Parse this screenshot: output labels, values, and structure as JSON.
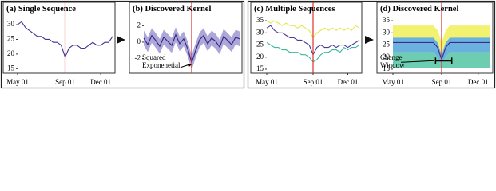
{
  "chart_data": [
    {
      "type": "line",
      "title": "(a) Single Sequence",
      "x": [
        0,
        1,
        2,
        3,
        4,
        5,
        6,
        7,
        8,
        9,
        10,
        11,
        12,
        13,
        14,
        15,
        16,
        17,
        18,
        19,
        20,
        21,
        22,
        23,
        24
      ],
      "xlim": [
        0,
        24
      ],
      "xticks": [
        {
          "value": 0,
          "label": "May 01"
        },
        {
          "value": 12,
          "label": "Sep 01"
        },
        {
          "value": 21,
          "label": "Dec 01"
        }
      ],
      "ylim": [
        14,
        33
      ],
      "yticks": [
        15,
        20,
        25,
        30
      ],
      "vline": 12,
      "series": [
        {
          "color": "#3d3590",
          "values": [
            30,
            31,
            29,
            28,
            27,
            26,
            26,
            25,
            25,
            24,
            24,
            23,
            19,
            22,
            23,
            23,
            22,
            22,
            23,
            24,
            23,
            23,
            24,
            24,
            26
          ]
        }
      ]
    },
    {
      "type": "line",
      "title": "(b) Discovered Kernel",
      "x": [
        0,
        1,
        2,
        3,
        4,
        5,
        6,
        7,
        8,
        9,
        10,
        11,
        12,
        13,
        14,
        15,
        16,
        17,
        18,
        19,
        20,
        21,
        22,
        23,
        24
      ],
      "xlim": [
        0,
        24
      ],
      "xticks": [],
      "ylim": [
        -3.6,
        3.2
      ],
      "yticks": [
        -2,
        0,
        2
      ],
      "vline": 12,
      "annotation": [
        "Squared",
        "Exponenetial"
      ],
      "bands": [
        {
          "color": "#8a80c8",
          "lower": [
            -0.4,
            -1.2,
            -0.1,
            -0.7,
            -1.4,
            -0.3,
            -0.8,
            -1.3,
            0,
            -1.1,
            -0.5,
            -1.7,
            -3.4,
            -1.9,
            -0.6,
            -0.1,
            -1.1,
            -0.4,
            -0.8,
            -1.5,
            -0.2,
            -0.7,
            -1.2,
            -0.3,
            -0.5
          ],
          "upper": [
            1.4,
            0.6,
            1.7,
            1.1,
            0.4,
            1.5,
            1.0,
            0.5,
            1.8,
            0.7,
            1.3,
            0.1,
            -1.6,
            -0.1,
            1.2,
            1.7,
            0.7,
            1.4,
            1.0,
            0.3,
            1.6,
            1.1,
            0.6,
            1.5,
            1.3
          ]
        }
      ],
      "series": [
        {
          "color": "#2e2680",
          "values": [
            0.5,
            -0.3,
            0.8,
            0.2,
            -0.5,
            0.6,
            0.1,
            -0.4,
            0.9,
            -0.2,
            0.4,
            -0.8,
            -2.5,
            -1.0,
            0.3,
            0.8,
            -0.2,
            0.5,
            0.1,
            -0.6,
            0.7,
            0.2,
            -0.3,
            0.6,
            0.4
          ]
        }
      ]
    },
    {
      "type": "line",
      "title": "(c) Multiple Sequences",
      "x": [
        0,
        1,
        2,
        3,
        4,
        5,
        6,
        7,
        8,
        9,
        10,
        11,
        12,
        13,
        14,
        15,
        16,
        17,
        18,
        19,
        20,
        21,
        22,
        23,
        24
      ],
      "xlim": [
        0,
        24
      ],
      "xticks": [
        {
          "value": 0,
          "label": "May 01"
        },
        {
          "value": 12,
          "label": "Sep 01"
        },
        {
          "value": 21,
          "label": "Dec 01"
        }
      ],
      "ylim": [
        14,
        37
      ],
      "yticks": [
        15,
        20,
        25,
        30,
        35
      ],
      "vline": 12,
      "series": [
        {
          "color": "#e6e64a",
          "values": [
            35,
            34,
            35,
            34,
            33,
            34,
            33,
            33,
            32,
            33,
            32,
            31,
            28,
            30,
            31,
            32,
            31,
            32,
            31,
            32,
            31,
            32,
            31,
            33,
            32
          ]
        },
        {
          "color": "#4a3a9a",
          "values": [
            32,
            33,
            31,
            30,
            30,
            29,
            28,
            28,
            27,
            27,
            26,
            25,
            21,
            24,
            25,
            24,
            24,
            25,
            24,
            25,
            25,
            24,
            25,
            26,
            27
          ]
        },
        {
          "color": "#3cb89a",
          "values": [
            26,
            25,
            24,
            24,
            23,
            23,
            22,
            22,
            22,
            21,
            21,
            20,
            18,
            19,
            21,
            22,
            22,
            23,
            23,
            22,
            24,
            23,
            24,
            24,
            25
          ]
        }
      ]
    },
    {
      "type": "line",
      "title": "(d) Discovered Kernel",
      "x": [
        0,
        1,
        2,
        3,
        4,
        5,
        6,
        7,
        8,
        9,
        10,
        11,
        12,
        13,
        14,
        15,
        16,
        17,
        18,
        19,
        20,
        21,
        22,
        23,
        24
      ],
      "xlim": [
        0,
        24
      ],
      "xticks": [
        {
          "value": 0,
          "label": "May 01"
        },
        {
          "value": 12,
          "label": "Sep 01"
        },
        {
          "value": 21,
          "label": "Dec 01"
        }
      ],
      "ylim": [
        14,
        37
      ],
      "yticks": [
        15,
        20,
        25,
        30,
        35
      ],
      "vline": 12,
      "annotation": [
        "Change",
        "Window"
      ],
      "window": [
        10.5,
        14.5
      ],
      "bands": [
        {
          "color": "#f2f060",
          "lower": [
            28,
            28,
            28,
            28,
            28,
            28,
            28,
            28,
            28,
            28,
            28,
            26,
            21,
            26,
            28,
            28,
            28,
            28,
            28,
            28,
            28,
            28,
            28,
            28,
            28
          ],
          "upper": [
            33,
            33,
            33,
            33,
            33,
            33,
            33,
            33,
            33,
            33,
            33,
            31,
            26,
            31,
            33,
            33,
            33,
            33,
            33,
            33,
            33,
            33,
            33,
            33,
            33
          ]
        },
        {
          "color": "#5aa8dc",
          "lower": [
            22,
            22,
            22,
            22,
            22,
            22,
            22,
            22,
            22,
            22,
            22,
            20,
            17,
            20,
            22,
            22,
            22,
            22,
            22,
            22,
            22,
            22,
            22,
            22,
            22
          ],
          "upper": [
            28,
            28,
            28,
            28,
            28,
            28,
            28,
            28,
            28,
            28,
            28,
            26,
            21,
            26,
            28,
            28,
            28,
            28,
            28,
            28,
            28,
            28,
            28,
            28,
            28
          ]
        },
        {
          "color": "#5cc8a8",
          "lower": [
            15.5,
            15.5,
            15.5,
            15.5,
            15.5,
            15.5,
            15.5,
            15.5,
            15.5,
            15.5,
            15.5,
            15.5,
            15.5,
            15.5,
            15.5,
            15.5,
            15.5,
            15.5,
            15.5,
            15.5,
            15.5,
            15.5,
            15.5,
            15.5,
            15.5
          ],
          "upper": [
            22,
            22,
            22,
            22,
            22,
            22,
            22,
            22,
            22,
            22,
            22,
            20,
            17,
            20,
            22,
            22,
            22,
            22,
            22,
            22,
            22,
            22,
            22,
            22,
            22
          ]
        }
      ],
      "series": [
        {
          "color": "#3a2a8a",
          "values": [
            26,
            26,
            26,
            26,
            26,
            26,
            26,
            26,
            26,
            26,
            26,
            24,
            19,
            24,
            26,
            26,
            26,
            26,
            26,
            26,
            26,
            26,
            26,
            26,
            26
          ]
        }
      ]
    }
  ]
}
